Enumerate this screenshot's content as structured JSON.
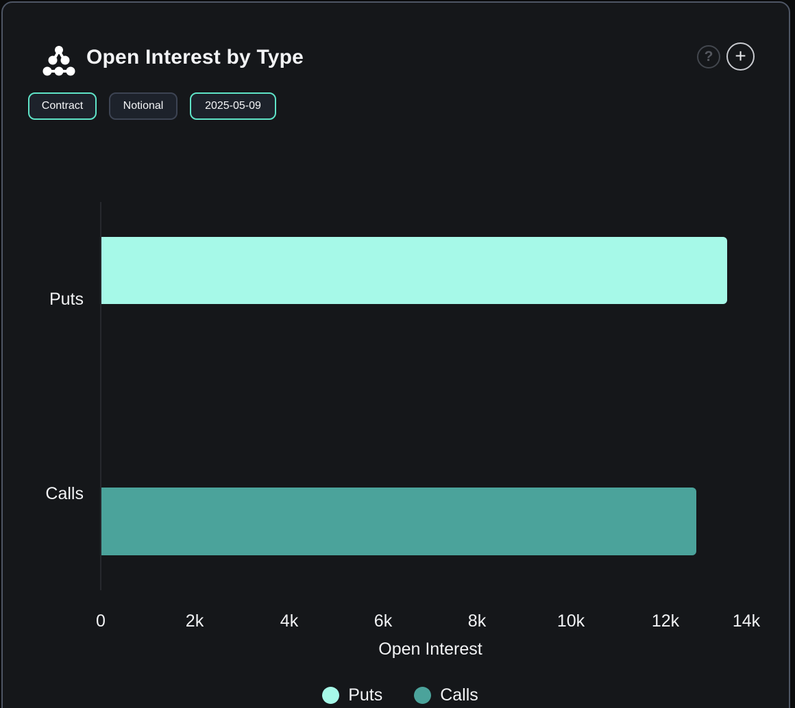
{
  "header": {
    "title": "Open Interest by Type",
    "help_icon": "question-mark",
    "add_icon": "plus"
  },
  "toolbar": {
    "buttons": [
      {
        "label": "Contract",
        "state": "active"
      },
      {
        "label": "Notional",
        "state": "inactive"
      },
      {
        "label": "2025-05-09",
        "state": "active"
      }
    ]
  },
  "chart_data": {
    "type": "bar",
    "orientation": "horizontal",
    "title": "Open Interest by Type",
    "categories": [
      "Puts",
      "Calls"
    ],
    "series": [
      {
        "name": "Puts",
        "color": "#a6f9e8",
        "values": [
          13300,
          null
        ]
      },
      {
        "name": "Calls",
        "color": "#4ba39b",
        "values": [
          null,
          12650
        ]
      }
    ],
    "xlabel": "Open Interest",
    "xlim": [
      0,
      14000
    ],
    "xticks": [
      0,
      2000,
      4000,
      6000,
      8000,
      10000,
      12000,
      14000
    ],
    "xtick_labels": [
      "0",
      "2k",
      "4k",
      "6k",
      "8k",
      "10k",
      "12k",
      "14k"
    ],
    "legend": [
      "Puts",
      "Calls"
    ],
    "legend_position": "bottom",
    "grid": false
  },
  "colors": {
    "accent_mint": "#5fe4c8",
    "puts_bar": "#a6f9e8",
    "calls_bar": "#4ba39b",
    "panel_background": "#15171a",
    "panel_border": "#4e5665"
  }
}
